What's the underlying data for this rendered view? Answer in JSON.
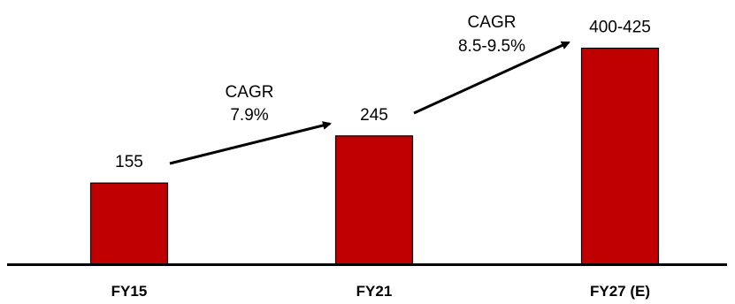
{
  "chart_data": {
    "type": "bar",
    "categories": [
      "FY15",
      "FY21",
      "FY27 (E)"
    ],
    "values": [
      155,
      245,
      412.5
    ],
    "value_labels": [
      "155",
      "245",
      "400-425"
    ],
    "ylim": [
      0,
      450
    ],
    "grid": false,
    "title": "",
    "xlabel": "",
    "ylabel": "",
    "annotations": [
      {
        "from": 0,
        "to": 1,
        "lines": [
          "CAGR",
          "7.9%"
        ]
      },
      {
        "from": 1,
        "to": 2,
        "lines": [
          "CAGR",
          "8.5-9.5%"
        ]
      }
    ],
    "colors": {
      "bar_fill": "#C00000",
      "bar_stroke": "#000000",
      "axis": "#000000",
      "arrow": "#000000"
    }
  }
}
